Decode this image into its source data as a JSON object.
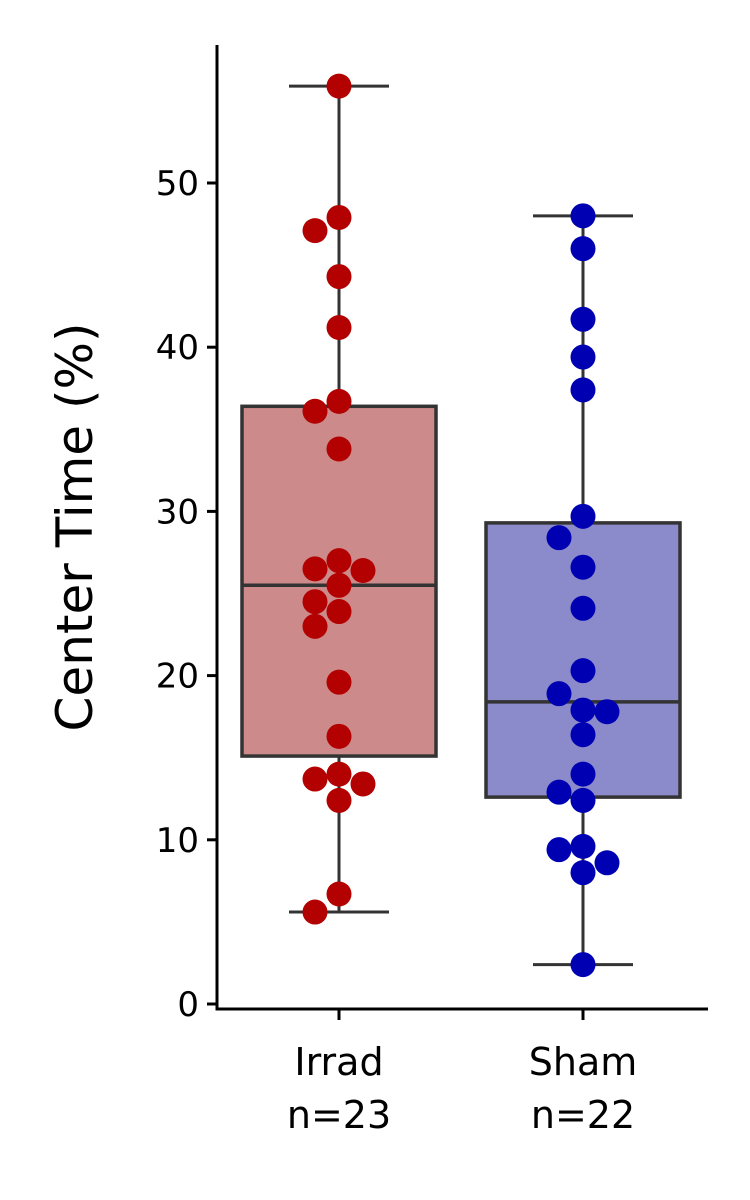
{
  "chart_data": {
    "type": "box",
    "title": "",
    "xlabel": "",
    "ylabel": "Center Time (%)",
    "ylim": [
      -0.5,
      58.2
    ],
    "yticks": [
      0,
      10,
      20,
      30,
      40,
      50
    ],
    "grid": false,
    "groups": [
      {
        "name": "Irrad",
        "n_label": "n=23",
        "fill": "#cd8a8a",
        "point_color": "#b30000",
        "box": {
          "whisker_low": 5.6,
          "q1": 15.1,
          "median": 25.5,
          "q3": 36.4,
          "whisker_high": 55.9
        },
        "points": [
          55.9,
          47.9,
          47.1,
          44.3,
          41.2,
          36.7,
          36.1,
          33.8,
          27.0,
          26.5,
          26.4,
          25.5,
          24.5,
          23.9,
          23.0,
          19.6,
          16.3,
          14.0,
          13.7,
          13.4,
          12.4,
          6.7,
          5.6
        ]
      },
      {
        "name": "Sham",
        "n_label": "n=22",
        "fill": "#8b8bcb",
        "point_color": "#0000b3",
        "box": {
          "whisker_low": 2.4,
          "q1": 12.6,
          "median": 18.4,
          "q3": 29.3,
          "whisker_high": 48.0
        },
        "points": [
          48.0,
          46.0,
          41.7,
          39.4,
          37.4,
          29.7,
          28.4,
          26.6,
          24.1,
          20.3,
          18.9,
          17.9,
          17.8,
          16.4,
          14.0,
          12.9,
          12.4,
          9.6,
          9.4,
          8.6,
          8.0,
          2.4
        ]
      }
    ],
    "box_edge_color": "#333333"
  }
}
